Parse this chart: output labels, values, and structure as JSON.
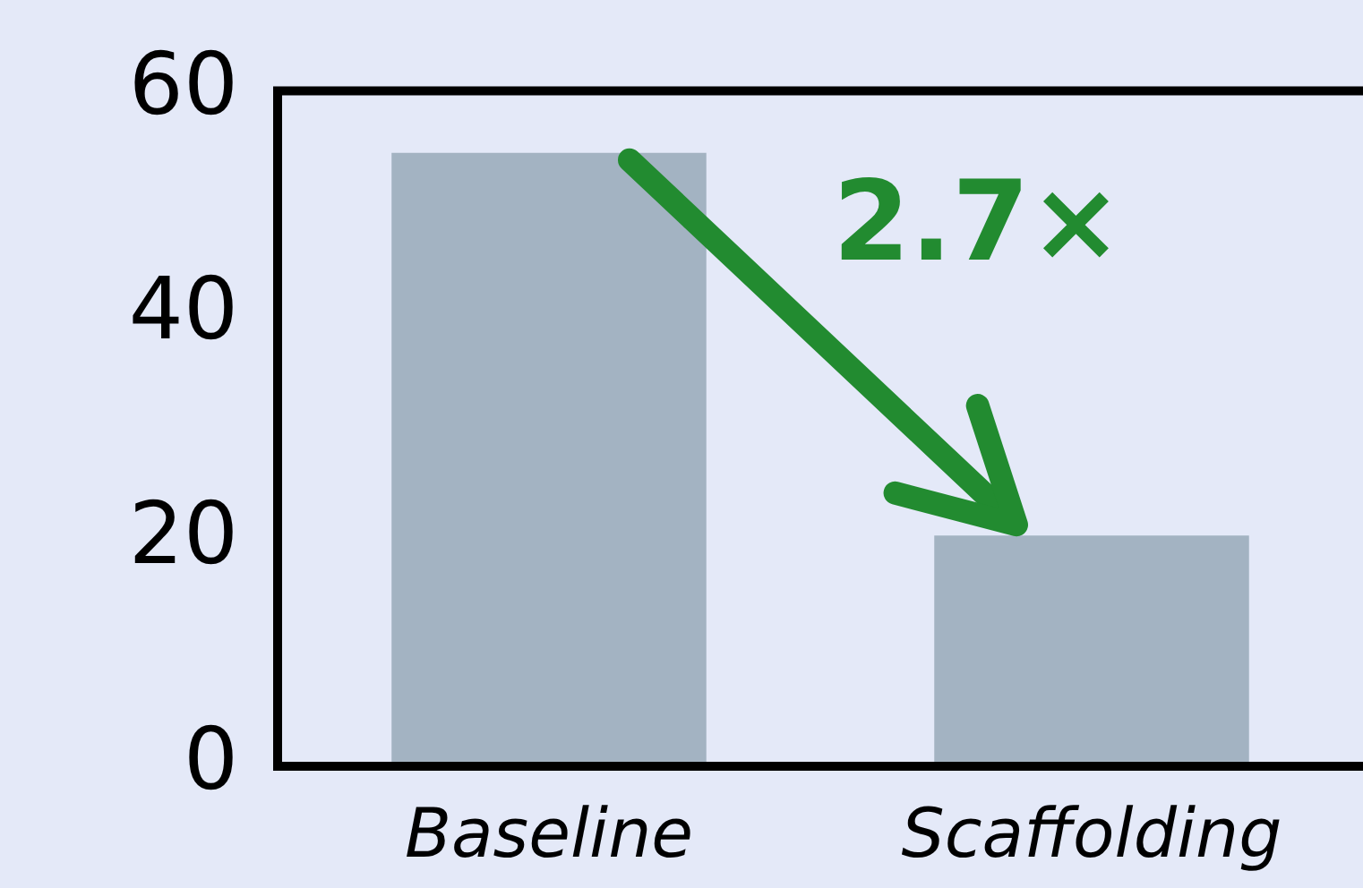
{
  "chart_data": {
    "type": "bar",
    "categories": [
      "Baseline",
      "Scaffolding"
    ],
    "values": [
      54.5,
      20.5
    ],
    "color": "#a3b3c2",
    "ylim": [
      0,
      60
    ],
    "yticks": [
      0,
      20,
      40,
      60
    ],
    "grid": false,
    "legend": false,
    "annotations": [
      "2.7×"
    ]
  }
}
